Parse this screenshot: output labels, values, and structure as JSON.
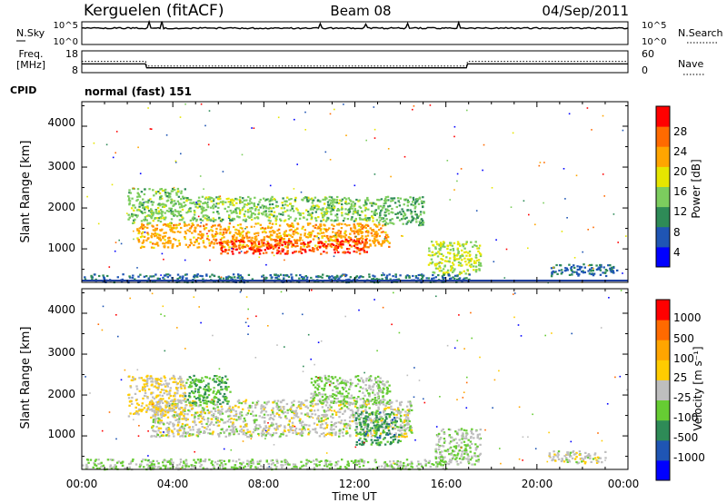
{
  "header": {
    "station": "Kerguelen (fitACF)",
    "beam": "Beam 08",
    "date": "04/Sep/2011"
  },
  "noise_panel": {
    "left_label": "N.Sky",
    "left_ticks": [
      "10^5",
      "10^0"
    ],
    "right_label": "N.Search",
    "right_ticks": [
      "10^5",
      "10^0"
    ]
  },
  "freq_panel": {
    "left_label_line1": "Freq.",
    "left_label_line2": "[MHz]",
    "left_ticks": [
      "18",
      "8"
    ],
    "right_label": "Nave",
    "right_ticks": [
      "60",
      "0"
    ]
  },
  "cpid": {
    "label": "CPID",
    "value": "normal (fast) 151"
  },
  "power_panel": {
    "ylabel": "Slant Range [km]",
    "yticks": [
      "4000",
      "3000",
      "2000",
      "1000"
    ],
    "colorbar_label": "Power [dB]",
    "colorbar_ticks": [
      "28",
      "24",
      "20",
      "16",
      "12",
      "8",
      "4"
    ],
    "colors": [
      "#0000ff",
      "#1f55b4",
      "#2e8b57",
      "#7ccd5e",
      "#e6e600",
      "#ffa500",
      "#ff6a00",
      "#ff0000"
    ]
  },
  "velocity_panel": {
    "ylabel": "Slant Range [km]",
    "yticks": [
      "4000",
      "3000",
      "2000",
      "1000"
    ],
    "colorbar_label": "Velocity [m s⁻¹]",
    "colorbar_ticks": [
      "1000",
      "500",
      "100",
      "25",
      "-25",
      "-100",
      "-500",
      "-1000"
    ],
    "colors": [
      "#0000ff",
      "#1f55b4",
      "#2e8b57",
      "#66cc33",
      "#bebebe",
      "#ffcc00",
      "#ffa500",
      "#ff6a00",
      "#ff0000"
    ]
  },
  "xaxis": {
    "label": "Time UT",
    "ticks": [
      "00:00",
      "04:00",
      "08:00",
      "12:00",
      "16:00",
      "20:00",
      "00:00"
    ]
  },
  "chart_data": [
    {
      "type": "heatmap",
      "title": "Power",
      "xlabel": "Time UT",
      "ylabel": "Slant Range [km]",
      "xlim": [
        0,
        24
      ],
      "ylim": [
        180,
        4600
      ],
      "colorbar": {
        "label": "Power [dB]",
        "range": [
          0,
          32
        ]
      },
      "regions": [
        {
          "t": [
            2.4,
            13.5
          ],
          "r": [
            1050,
            1650
          ],
          "value": 22
        },
        {
          "t": [
            6.0,
            12.5
          ],
          "r": [
            900,
            1250
          ],
          "value": 28
        },
        {
          "t": [
            2.0,
            4.5
          ],
          "r": [
            1650,
            2500
          ],
          "value": 14
        },
        {
          "t": [
            4.5,
            13.0
          ],
          "r": [
            1700,
            2300
          ],
          "value": 14
        },
        {
          "t": [
            13.0,
            15.0
          ],
          "r": [
            1600,
            2300
          ],
          "value": 12
        },
        {
          "t": [
            15.2,
            17.5
          ],
          "r": [
            400,
            1200
          ],
          "value": 16
        },
        {
          "t": [
            20.5,
            23.5
          ],
          "r": [
            350,
            650
          ],
          "value": 8
        },
        {
          "t": [
            0.0,
            17.0
          ],
          "r": [
            200,
            400
          ],
          "value": 8
        }
      ]
    },
    {
      "type": "heatmap",
      "title": "Velocity",
      "xlabel": "Time UT",
      "ylabel": "Slant Range [km]",
      "xlim": [
        0,
        24
      ],
      "ylim": [
        180,
        4600
      ],
      "colorbar": {
        "label": "Velocity [m s⁻¹]",
        "range": [
          -1000,
          1000
        ]
      },
      "regions": [
        {
          "t": [
            3.0,
            14.5
          ],
          "r": [
            1000,
            1900
          ],
          "value": 0
        },
        {
          "t": [
            2.0,
            4.5
          ],
          "r": [
            1500,
            2500
          ],
          "value": 100
        },
        {
          "t": [
            4.5,
            6.5
          ],
          "r": [
            1800,
            2500
          ],
          "value": -300
        },
        {
          "t": [
            10.0,
            13.5
          ],
          "r": [
            1800,
            2500
          ],
          "value": -150
        },
        {
          "t": [
            12.0,
            14.0
          ],
          "r": [
            800,
            1600
          ],
          "value": -400
        },
        {
          "t": [
            15.5,
            17.5
          ],
          "r": [
            300,
            1200
          ],
          "value": -100
        },
        {
          "t": [
            20.5,
            23.0
          ],
          "r": [
            350,
            650
          ],
          "value": 20
        },
        {
          "t": [
            0.0,
            16.0
          ],
          "r": [
            200,
            450
          ],
          "value": -120
        }
      ]
    },
    {
      "type": "line",
      "title": "Frequency",
      "xlabel": "Time UT",
      "ylabel": "Freq. [MHz]",
      "x": [
        0,
        2.8,
        2.85,
        16.9,
        16.95,
        24
      ],
      "y": [
        12.0,
        12.0,
        10.2,
        10.2,
        12.0,
        12.0
      ],
      "ylim": [
        8,
        18
      ]
    },
    {
      "type": "line",
      "title": "Nave",
      "xlabel": "Time UT",
      "ylabel": "Nave",
      "x": [
        0,
        2.8,
        2.85,
        16.9,
        16.95,
        24
      ],
      "y": [
        31,
        31,
        18,
        18,
        31,
        31
      ],
      "ylim": [
        0,
        60
      ]
    }
  ]
}
